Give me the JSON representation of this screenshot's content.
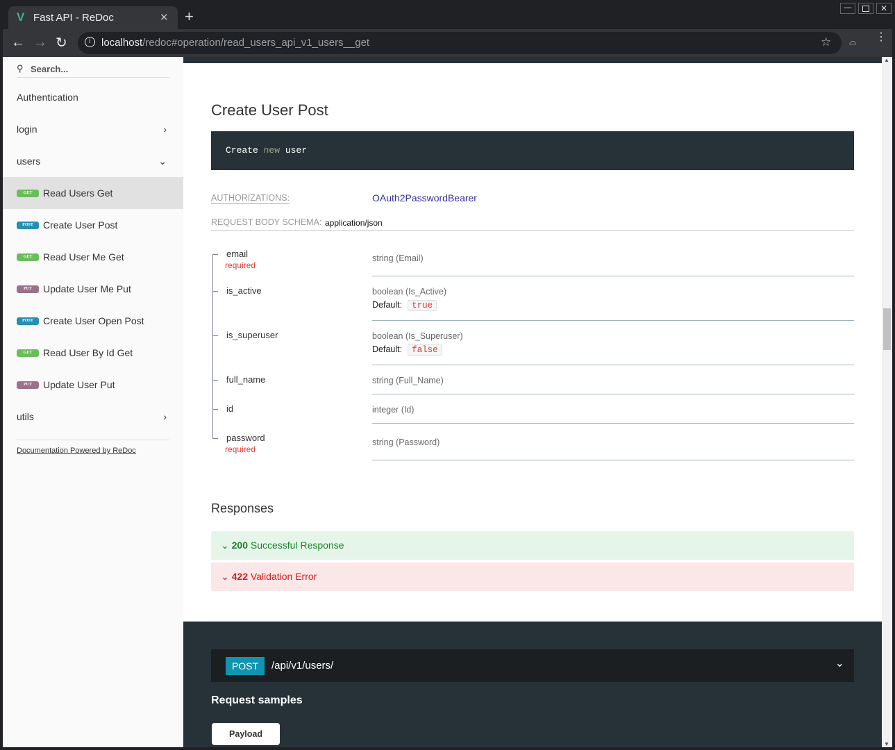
{
  "browser": {
    "tab_title": "Fast API - ReDoc",
    "url_host": "localhost",
    "url_path": "/redoc#operation/read_users_api_v1_users__get"
  },
  "sidebar": {
    "search_placeholder": "Search...",
    "items": [
      {
        "label": "Authentication"
      },
      {
        "label": "login"
      },
      {
        "label": "users"
      },
      {
        "label": "Read Users Get",
        "method": "GET"
      },
      {
        "label": "Create User Post",
        "method": "POST"
      },
      {
        "label": "Read User Me Get",
        "method": "GET"
      },
      {
        "label": "Update User Me Put",
        "method": "PUT"
      },
      {
        "label": "Create User Open Post",
        "method": "POST"
      },
      {
        "label": "Read User By Id Get",
        "method": "GET"
      },
      {
        "label": "Update User Put",
        "method": "PUT"
      },
      {
        "label": "utils"
      }
    ],
    "footer": "Documentation Powered by ReDoc"
  },
  "colors": {
    "get": "#6bbd5b",
    "post": "#248fb2",
    "put": "#9b708b"
  },
  "operation": {
    "title": "Create User Post",
    "description_code": [
      "Create ",
      "new",
      " user"
    ],
    "auth_label": "AUTHORIZATIONS:",
    "auth_value": "OAuth2PasswordBearer",
    "body_label": "REQUEST BODY SCHEMA:",
    "body_value": "application/json",
    "default_label": "Default:",
    "props": [
      {
        "name": "email",
        "required": "required",
        "type": "string (Email)"
      },
      {
        "name": "is_active",
        "type": "boolean (Is_Active)",
        "default": "true"
      },
      {
        "name": "is_superuser",
        "type": "boolean (Is_Superuser)",
        "default": "false"
      },
      {
        "name": "full_name",
        "type": "string (Full_Name)"
      },
      {
        "name": "id",
        "type": "integer (Id)"
      },
      {
        "name": "password",
        "required": "required",
        "type": "string (Password)"
      }
    ],
    "responses_title": "Responses",
    "responses": [
      {
        "code": "200",
        "label": "Successful Response"
      },
      {
        "code": "422",
        "label": "Validation Error"
      }
    ],
    "endpoint": {
      "method": "POST",
      "path": "/api/v1/users/"
    },
    "samples_title": "Request samples",
    "payload_tab": "Payload"
  }
}
